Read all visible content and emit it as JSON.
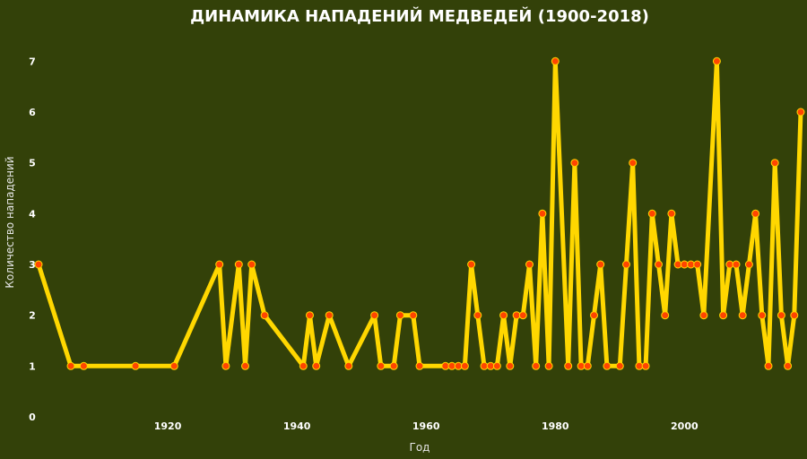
{
  "chart_data": {
    "type": "line",
    "title": "ДИНАМИКА НАПАДЕНИЙ МЕДВЕДЕЙ (1900-2018)",
    "xlabel": "Год",
    "ylabel": "Количество нападений",
    "xlim": [
      1900,
      2018
    ],
    "ylim": [
      0,
      7.5
    ],
    "xticks": [
      "1920",
      "1940",
      "1960",
      "1980",
      "2000"
    ],
    "yticks": [
      "0",
      "1",
      "2",
      "3",
      "4",
      "5",
      "6",
      "7"
    ],
    "grid": false,
    "legend": "none",
    "line_color": "#ffd700",
    "marker_color": "#ff4500",
    "background_color": "#334109",
    "x": [
      1900,
      1905,
      1907,
      1915,
      1921,
      1928,
      1929,
      1931,
      1932,
      1933,
      1935,
      1941,
      1942,
      1943,
      1945,
      1948,
      1952,
      1953,
      1955,
      1956,
      1958,
      1959,
      1963,
      1964,
      1965,
      1966,
      1967,
      1968,
      1969,
      1970,
      1971,
      1972,
      1973,
      1974,
      1975,
      1976,
      1977,
      1978,
      1979,
      1980,
      1982,
      1983,
      1984,
      1985,
      1986,
      1987,
      1988,
      1990,
      1991,
      1992,
      1993,
      1994,
      1995,
      1996,
      1997,
      1998,
      1999,
      2000,
      2001,
      2002,
      2003,
      2005,
      2006,
      2007,
      2008,
      2009,
      2010,
      2011,
      2012,
      2013,
      2014,
      2015,
      2016,
      2017,
      2018
    ],
    "values": [
      3,
      1,
      1,
      1,
      1,
      3,
      1,
      3,
      1,
      3,
      2,
      1,
      2,
      1,
      2,
      1,
      2,
      1,
      1,
      2,
      2,
      1,
      1,
      1,
      1,
      1,
      3,
      2,
      1,
      1,
      1,
      2,
      1,
      2,
      2,
      3,
      1,
      4,
      1,
      7,
      1,
      5,
      1,
      1,
      2,
      3,
      1,
      1,
      3,
      5,
      1,
      1,
      4,
      3,
      2,
      4,
      3,
      3,
      3,
      3,
      2,
      7,
      2,
      3,
      3,
      2,
      3,
      4,
      2,
      1,
      5,
      2,
      1,
      2,
      6
    ]
  }
}
